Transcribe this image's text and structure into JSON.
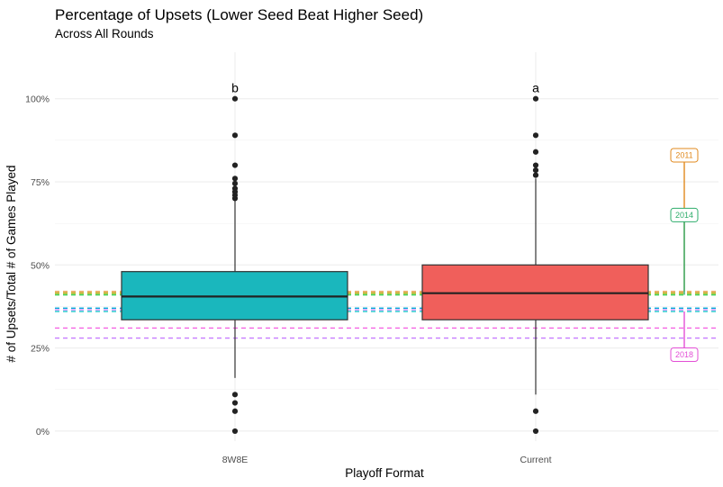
{
  "chart_data": {
    "type": "box",
    "title": "Percentage of Upsets (Lower Seed Beat Higher Seed)",
    "subtitle": "Across All Rounds",
    "xlabel": "Playoff Format",
    "ylabel": "# of Upsets/Total # of Games Played",
    "categories": [
      "8W8E",
      "Current"
    ],
    "ylim": [
      -0.03,
      1.14
    ],
    "yticks": [
      0,
      0.25,
      0.5,
      0.75,
      1.0
    ],
    "ytick_labels": [
      "0%",
      "25%",
      "50%",
      "75%",
      "100%"
    ],
    "grid": true,
    "boxes": [
      {
        "category": "8W8E",
        "color": "#1ab7bd",
        "min": 0.16,
        "q1": 0.335,
        "median": 0.405,
        "q3": 0.48,
        "max": 0.7,
        "mean": 0.415,
        "outliers": [
          1.0,
          0.89,
          0.8,
          0.76,
          0.745,
          0.73,
          0.72,
          0.71,
          0.7,
          0.11,
          0.085,
          0.06,
          0.0
        ],
        "letter": "b"
      },
      {
        "category": "Current",
        "color": "#f05f5b",
        "min": 0.11,
        "q1": 0.335,
        "median": 0.415,
        "q3": 0.5,
        "max": 0.76,
        "mean": 0.36,
        "outliers": [
          1.0,
          0.89,
          0.84,
          0.8,
          0.785,
          0.77,
          0.06,
          0.0
        ],
        "letter": "a"
      }
    ],
    "reference_lines": [
      {
        "value": 0.42,
        "color": "#e08a1e"
      },
      {
        "value": 0.415,
        "color": "#a6a600"
      },
      {
        "value": 0.41,
        "color": "#2ecc40"
      },
      {
        "value": 0.37,
        "color": "#00a6d6"
      },
      {
        "value": 0.365,
        "color": "#c77cff"
      },
      {
        "value": 0.36,
        "color": "#00bfc4"
      },
      {
        "value": 0.31,
        "color": "#f564e3"
      },
      {
        "value": 0.28,
        "color": "#c77cff"
      }
    ],
    "year_labels": [
      {
        "year": "2011",
        "value": 0.83,
        "line_to": 0.42,
        "color": "#e08a1e"
      },
      {
        "year": "2014",
        "value": 0.65,
        "line_to": 0.41,
        "color": "#2ead6b"
      },
      {
        "year": "2018",
        "value": 0.23,
        "line_to": 0.36,
        "color": "#e34fd6"
      }
    ]
  }
}
